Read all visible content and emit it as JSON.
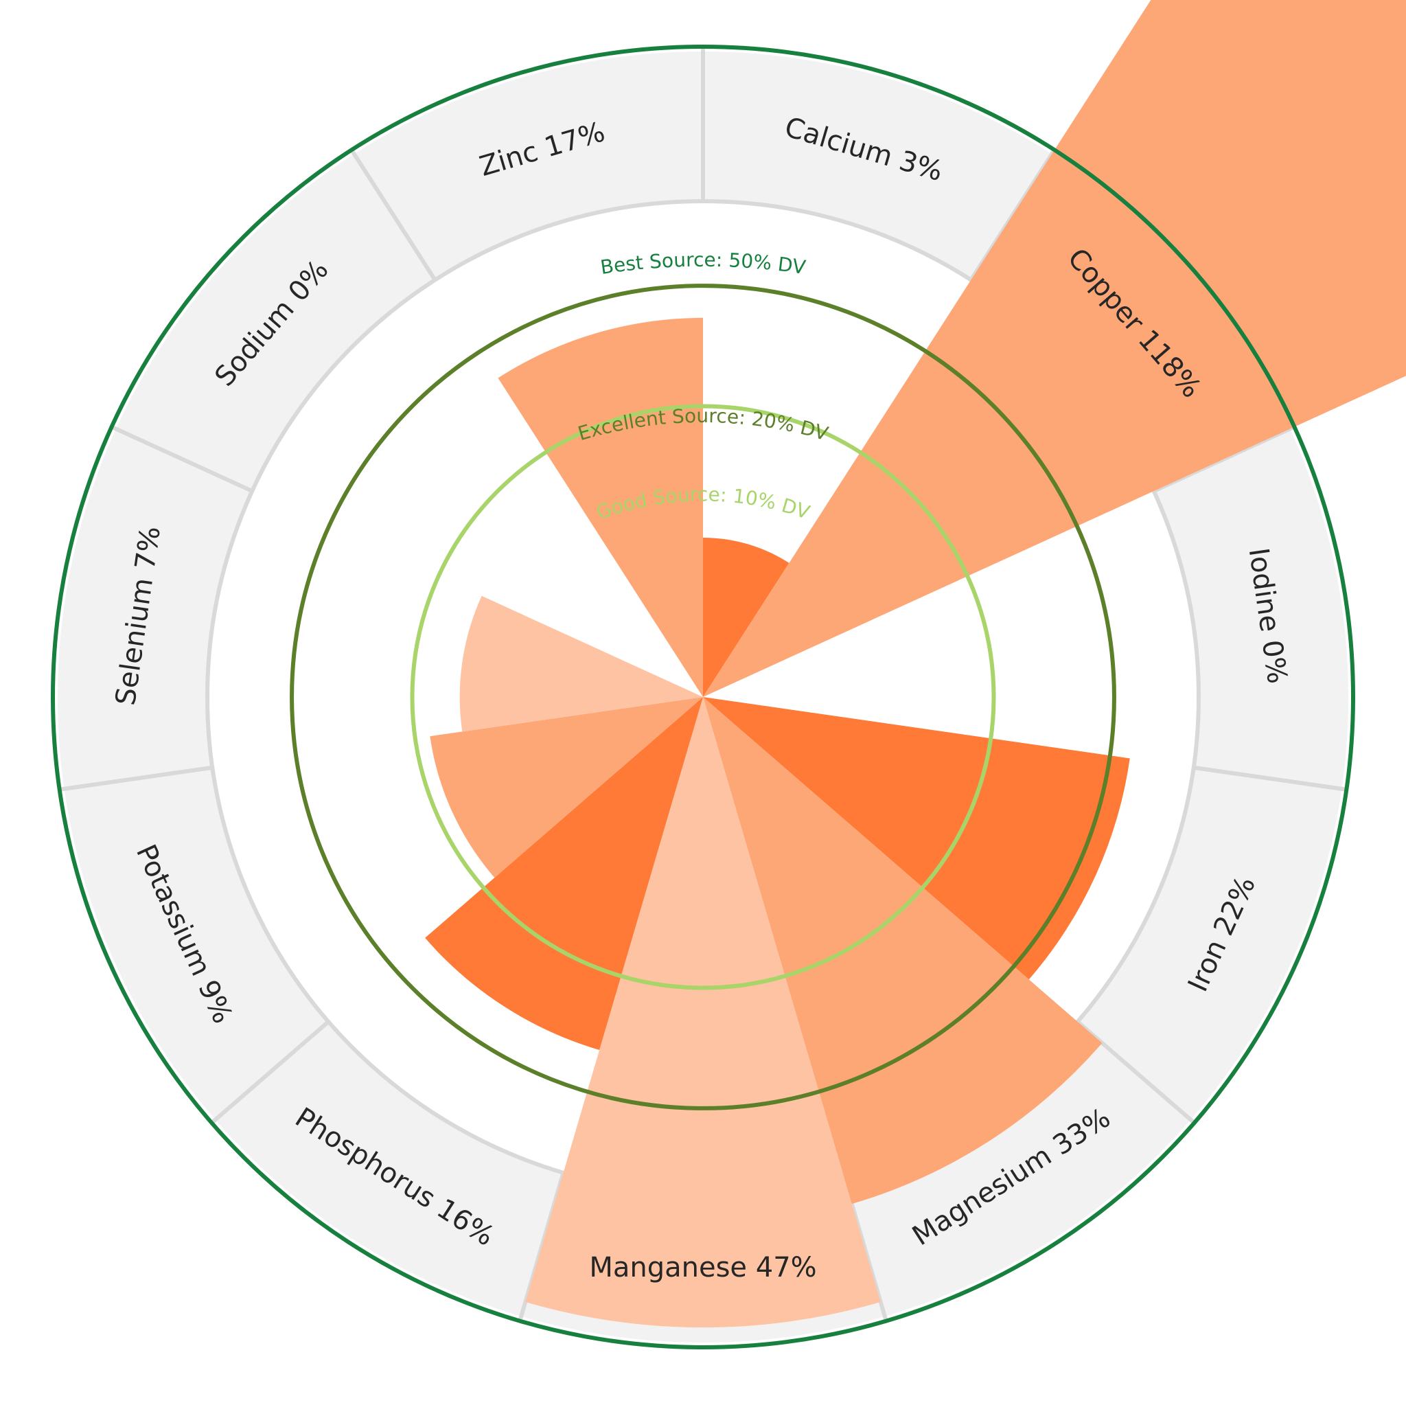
{
  "chart_data": {
    "type": "polar-bar",
    "unit": "% DV",
    "radial_max": 50,
    "start_category": "Calcium",
    "direction": "clockwise",
    "categories": [
      {
        "name": "Calcium",
        "value": 3,
        "label": "Calcium 3%",
        "color": "#fe7a36"
      },
      {
        "name": "Copper",
        "value": 118,
        "label": "Copper 118%",
        "color": "#fea776"
      },
      {
        "name": "Iodine",
        "value": 0,
        "label": "Iodine 0%",
        "color": "#fec3a3"
      },
      {
        "name": "Iron",
        "value": 22,
        "label": "Iron 22%",
        "color": "#fe7a36"
      },
      {
        "name": "Magnesium",
        "value": 33,
        "label": "Magnesium 33%",
        "color": "#fea776"
      },
      {
        "name": "Manganese",
        "value": 47,
        "label": "Manganese 47%",
        "color": "#fec3a3"
      },
      {
        "name": "Phosphorus",
        "value": 16,
        "label": "Phosphorus 16%",
        "color": "#fe7a36"
      },
      {
        "name": "Potassium",
        "value": 9,
        "label": "Potassium 9%",
        "color": "#fea776"
      },
      {
        "name": "Selenium",
        "value": 7,
        "label": "Selenium 7%",
        "color": "#fec3a3"
      },
      {
        "name": "Sodium",
        "value": 0,
        "label": "Sodium 0%",
        "color": "#fe7a36"
      },
      {
        "name": "Zinc",
        "value": 17,
        "label": "Zinc 17%",
        "color": "#fea776"
      }
    ],
    "reference_circles": [
      {
        "value": 10,
        "label": "Good Source: 10% DV",
        "color": "#a9d46a"
      },
      {
        "value": 20,
        "label": "Excellent Source: 20% DV",
        "color": "#5c7f2a"
      },
      {
        "value": 50,
        "label": "Best Source: 50% DV",
        "color": "#17803f"
      }
    ],
    "label_band_color": "#f2f2f2",
    "grid_color": "#d9d9d9"
  }
}
